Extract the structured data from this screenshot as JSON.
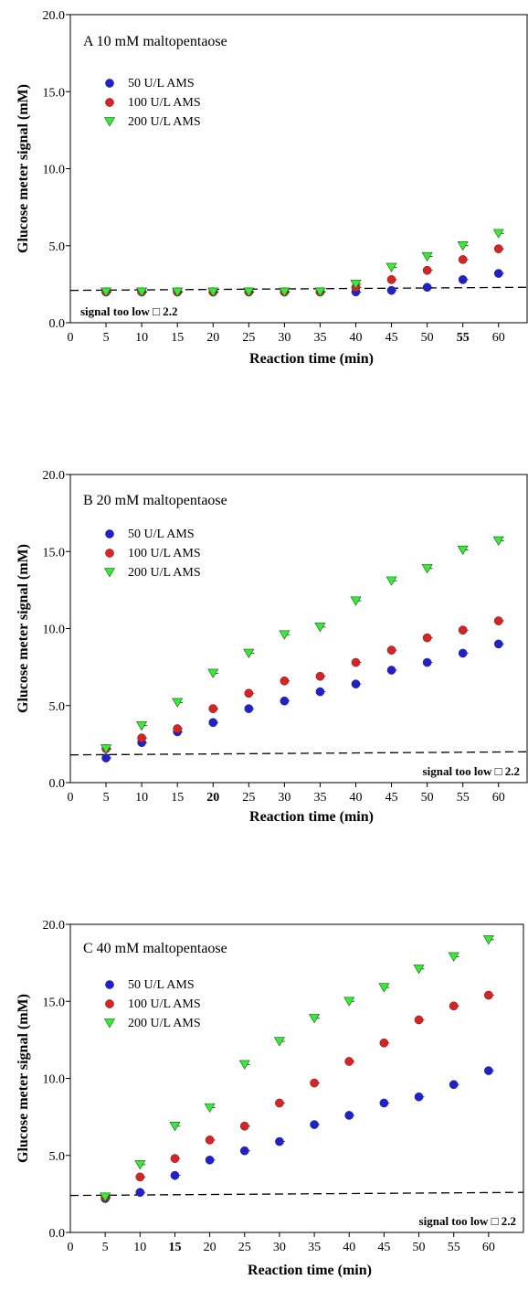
{
  "chart_data": [
    {
      "type": "scatter",
      "title": "A  10 mM maltopentaose",
      "xlabel": "Reaction time (min)",
      "ylabel": "Glucose meter signal (mM)",
      "xlim": [
        0,
        64
      ],
      "ylim": [
        0,
        20
      ],
      "x_ticks": [
        "0",
        "5",
        "10",
        "15",
        "20",
        "25",
        "30",
        "35",
        "40",
        "45",
        "50",
        "55",
        "60"
      ],
      "x_tick_bold": "55",
      "y_ticks": [
        "0.0",
        "5.0",
        "10.0",
        "15.0",
        "20.0"
      ],
      "legend_position": "top-left",
      "annotation": "signal too low □ 2.2",
      "annotation_position": "bottom-left",
      "threshold": [
        2.1,
        2.3
      ],
      "x": [
        5,
        10,
        15,
        20,
        25,
        30,
        35,
        40,
        45,
        50,
        55,
        60
      ],
      "series": [
        {
          "name": "50 U/L AMS",
          "color": "#1f1fd6",
          "marker": "circle",
          "values": [
            2.0,
            2.0,
            2.0,
            2.0,
            2.0,
            2.0,
            2.0,
            2.0,
            2.1,
            2.3,
            2.8,
            3.2
          ]
        },
        {
          "name": "100 U/L AMS",
          "color": "#e02020",
          "marker": "circle",
          "values": [
            2.0,
            2.0,
            2.0,
            2.0,
            2.0,
            2.0,
            2.0,
            2.3,
            2.8,
            3.4,
            4.1,
            4.8
          ]
        },
        {
          "name": "200 U/L AMS",
          "color": "#33ee33",
          "marker": "triangle-down",
          "values": [
            2.0,
            2.0,
            2.0,
            2.0,
            2.0,
            2.0,
            2.0,
            2.5,
            3.6,
            4.3,
            5.0,
            5.8
          ]
        }
      ]
    },
    {
      "type": "scatter",
      "title": "B  20 mM maltopentaose",
      "xlabel": "Reaction time (min)",
      "ylabel": "Glucose meter signal (mM)",
      "xlim": [
        0,
        64
      ],
      "ylim": [
        0,
        20
      ],
      "x_ticks": [
        "0",
        "5",
        "10",
        "15",
        "20",
        "25",
        "30",
        "35",
        "40",
        "45",
        "50",
        "55",
        "60"
      ],
      "x_tick_bold": "20",
      "y_ticks": [
        "0.0",
        "5.0",
        "10.0",
        "15.0",
        "20.0"
      ],
      "legend_position": "top-left",
      "annotation": "signal too low □ 2.2",
      "annotation_position": "bottom-right",
      "threshold": [
        1.8,
        2.0
      ],
      "x": [
        5,
        10,
        15,
        20,
        25,
        30,
        35,
        40,
        45,
        50,
        55,
        60
      ],
      "series": [
        {
          "name": "50 U/L AMS",
          "color": "#1f1fd6",
          "marker": "circle",
          "values": [
            1.6,
            2.6,
            3.3,
            3.9,
            4.8,
            5.3,
            5.9,
            6.4,
            7.3,
            7.8,
            8.4,
            9.0
          ]
        },
        {
          "name": "100 U/L AMS",
          "color": "#e02020",
          "marker": "circle",
          "values": [
            2.2,
            2.9,
            3.5,
            4.8,
            5.8,
            6.6,
            6.9,
            7.8,
            8.6,
            9.4,
            9.9,
            10.5
          ]
        },
        {
          "name": "200 U/L AMS",
          "color": "#33ee33",
          "marker": "triangle-down",
          "values": [
            2.2,
            3.7,
            5.2,
            7.1,
            8.4,
            9.6,
            10.1,
            11.8,
            13.1,
            13.9,
            15.1,
            15.7
          ]
        }
      ]
    },
    {
      "type": "scatter",
      "title": "C  40 mM maltopentaose",
      "xlabel": "Reaction time (min)",
      "ylabel": "Glucose meter signal (mM)",
      "xlim": [
        0,
        65
      ],
      "ylim": [
        0,
        20
      ],
      "x_ticks": [
        "0",
        "5",
        "10",
        "15",
        "20",
        "25",
        "30",
        "35",
        "40",
        "45",
        "50",
        "55",
        "60"
      ],
      "x_tick_bold": "15",
      "y_ticks": [
        "0.0",
        "5.0",
        "10.0",
        "15.0",
        "20.0"
      ],
      "legend_position": "top-left",
      "annotation": "signal too low □ 2.2",
      "annotation_position": "bottom-right",
      "threshold": [
        2.4,
        2.6
      ],
      "x": [
        5,
        10,
        15,
        20,
        25,
        30,
        35,
        40,
        45,
        50,
        55,
        60
      ],
      "series": [
        {
          "name": "50 U/L AMS",
          "color": "#1f1fd6",
          "marker": "circle",
          "values": [
            2.2,
            2.6,
            3.7,
            4.7,
            5.3,
            5.9,
            7.0,
            7.6,
            8.4,
            8.8,
            9.6,
            10.5
          ]
        },
        {
          "name": "100 U/L AMS",
          "color": "#e02020",
          "marker": "circle",
          "values": [
            2.3,
            3.6,
            4.8,
            6.0,
            6.9,
            8.4,
            9.7,
            11.1,
            12.3,
            13.8,
            14.7,
            15.4
          ]
        },
        {
          "name": "200 U/L AMS",
          "color": "#33ee33",
          "marker": "triangle-down",
          "values": [
            2.3,
            4.4,
            6.9,
            8.1,
            10.9,
            12.4,
            13.9,
            15.0,
            15.9,
            17.1,
            17.9,
            19.0
          ]
        }
      ]
    }
  ]
}
